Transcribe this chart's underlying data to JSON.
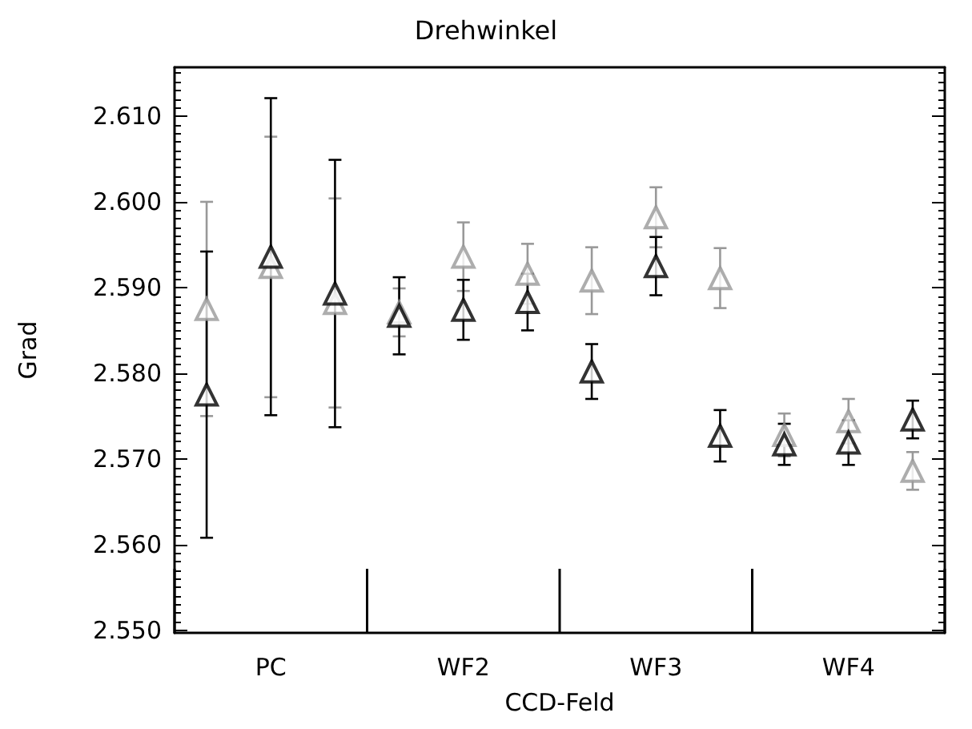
{
  "chart_data": {
    "type": "scatter",
    "title": "Drehwinkel",
    "xlabel": "CCD-Feld",
    "ylabel": "Grad",
    "categories": [
      null,
      "PC",
      null,
      null,
      "WF2",
      null,
      null,
      "WF3",
      null,
      null,
      "WF4",
      null
    ],
    "ylim": [
      2.5497,
      2.6157
    ],
    "yticks": [
      {
        "value": 2.55,
        "label": "2.550"
      },
      {
        "value": 2.56,
        "label": "2.560"
      },
      {
        "value": 2.57,
        "label": "2.570"
      },
      {
        "value": 2.58,
        "label": "2.580"
      },
      {
        "value": 2.59,
        "label": "2.590"
      },
      {
        "value": 2.6,
        "label": "2.600"
      },
      {
        "value": 2.61,
        "label": "2.610"
      }
    ],
    "marker": "triangle",
    "series": [
      {
        "color": "#999999",
        "values": [
          2.5875,
          2.5924,
          2.5882,
          2.5871,
          2.5936,
          2.5916,
          2.5908,
          2.5982,
          2.5911,
          2.5728,
          2.5744,
          2.5686
        ],
        "errors": [
          0.0125,
          0.0152,
          0.0122,
          0.0028,
          0.004,
          0.0035,
          0.0039,
          0.0035,
          0.0035,
          0.0025,
          0.0026,
          0.0022
        ]
      },
      {
        "color": "#000000",
        "values": [
          2.5775,
          2.5936,
          2.5893,
          2.5867,
          2.5874,
          2.5883,
          2.5802,
          2.5925,
          2.5727,
          2.5717,
          2.5719,
          2.5746
        ],
        "errors": [
          0.0167,
          0.0185,
          0.0156,
          0.0045,
          0.0035,
          0.0033,
          0.0032,
          0.0034,
          0.003,
          0.0024,
          0.0026,
          0.0022
        ]
      }
    ]
  }
}
